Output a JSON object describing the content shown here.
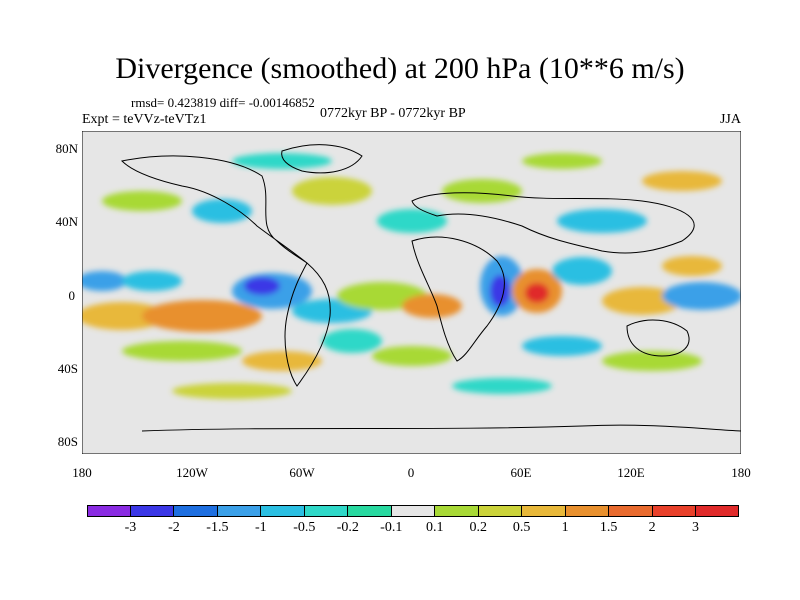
{
  "header": {
    "title": "Divergence (smoothed) at 200 hPa (10**6 m/s)",
    "stats": "rmsd= 0.423819 diff= -0.00146852",
    "experiment": "Expt = teVVz-teVTz1",
    "period": "0772kyr BP - 0772kyr BP",
    "season": "JJA"
  },
  "map": {
    "lat_ticks": [
      "80N",
      "40N",
      "0",
      "40S",
      "80S"
    ],
    "lon_ticks": [
      "180",
      "120W",
      "60W",
      "0",
      "60E",
      "120E",
      "180"
    ],
    "background_color": "#e6e6e6"
  },
  "colorbar": {
    "labels": [
      "-3",
      "-2",
      "-1.5",
      "-1",
      "-0.5",
      "-0.2",
      "-0.1",
      "0.1",
      "0.2",
      "0.5",
      "1",
      "1.5",
      "2",
      "3"
    ],
    "colors": [
      "#8a2be2",
      "#3b37e6",
      "#1e6fe0",
      "#3ba0e8",
      "#2bbfe2",
      "#2fd8c8",
      "#28d9a0",
      "#e6e6e6",
      "#a8d936",
      "#cbd33a",
      "#e8b83a",
      "#e8902e",
      "#e86a2e",
      "#e8402a",
      "#e02a2a"
    ]
  }
}
